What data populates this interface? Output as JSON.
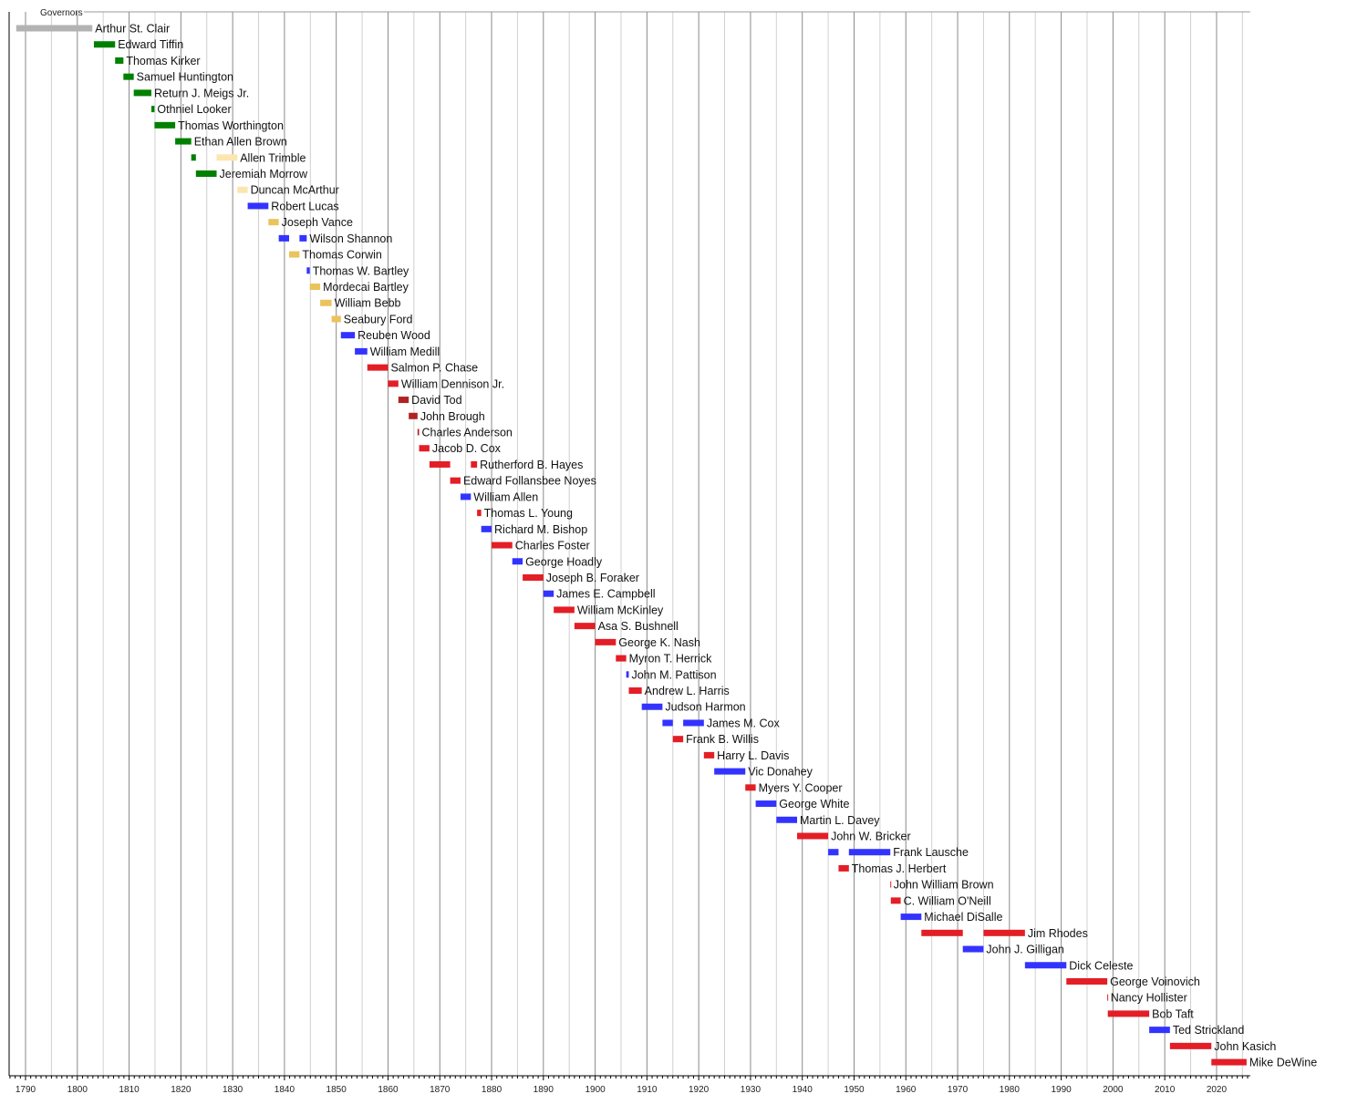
{
  "chart_data": {
    "type": "timeline",
    "title": "Governors",
    "xlim": [
      1787,
      2026.5
    ],
    "x_ticks": [
      1790,
      1800,
      1810,
      1820,
      1830,
      1840,
      1850,
      1860,
      1870,
      1880,
      1890,
      1900,
      1910,
      1920,
      1930,
      1940,
      1950,
      1960,
      1970,
      1980,
      1990,
      2000,
      2010,
      2020
    ],
    "grid": "major every 10 years, minor every 5 years, ticks every year",
    "colors": {
      "grey": "#b3b3b3",
      "green": "#008000",
      "pale": "#fde5b0",
      "gold": "#eac35c",
      "blue": "#3333ff",
      "red": "#e31e26",
      "darkred": "#b22222"
    },
    "rows": [
      {
        "name": "Arthur St. Clair",
        "terms": [
          [
            1788.2,
            1802.9,
            "grey"
          ]
        ]
      },
      {
        "name": "Edward Tiffin",
        "terms": [
          [
            1803.2,
            1807.3,
            "green"
          ]
        ]
      },
      {
        "name": "Thomas Kirker",
        "terms": [
          [
            1807.3,
            1808.9,
            "green"
          ]
        ]
      },
      {
        "name": "Samuel Huntington",
        "terms": [
          [
            1808.9,
            1810.9,
            "green"
          ]
        ]
      },
      {
        "name": "Return J. Meigs Jr.",
        "terms": [
          [
            1810.9,
            1814.3,
            "green"
          ]
        ]
      },
      {
        "name": "Othniel Looker",
        "terms": [
          [
            1814.3,
            1814.9,
            "green"
          ]
        ]
      },
      {
        "name": "Thomas Worthington",
        "terms": [
          [
            1814.9,
            1818.9,
            "green"
          ]
        ]
      },
      {
        "name": "Ethan Allen Brown",
        "terms": [
          [
            1818.9,
            1822.0,
            "green"
          ]
        ]
      },
      {
        "name": "Allen Trimble",
        "terms": [
          [
            1822.0,
            1822.9,
            "green"
          ],
          [
            1826.9,
            1830.9,
            "pale"
          ]
        ]
      },
      {
        "name": "Jeremiah Morrow",
        "terms": [
          [
            1822.9,
            1826.9,
            "green"
          ]
        ]
      },
      {
        "name": "Duncan McArthur",
        "terms": [
          [
            1830.9,
            1832.9,
            "pale"
          ]
        ]
      },
      {
        "name": "Robert Lucas",
        "terms": [
          [
            1832.9,
            1836.9,
            "blue"
          ]
        ]
      },
      {
        "name": "Joseph Vance",
        "terms": [
          [
            1836.9,
            1838.9,
            "gold"
          ]
        ]
      },
      {
        "name": "Wilson Shannon",
        "terms": [
          [
            1838.9,
            1840.9,
            "blue"
          ],
          [
            1842.9,
            1844.3,
            "blue"
          ]
        ]
      },
      {
        "name": "Thomas Corwin",
        "terms": [
          [
            1840.9,
            1842.9,
            "gold"
          ]
        ]
      },
      {
        "name": "Thomas W. Bartley",
        "terms": [
          [
            1844.3,
            1844.9,
            "blue"
          ]
        ]
      },
      {
        "name": "Mordecai Bartley",
        "terms": [
          [
            1844.9,
            1846.9,
            "gold"
          ]
        ]
      },
      {
        "name": "William Bebb",
        "terms": [
          [
            1846.9,
            1849.1,
            "gold"
          ]
        ]
      },
      {
        "name": "Seabury Ford",
        "terms": [
          [
            1849.1,
            1850.9,
            "gold"
          ]
        ]
      },
      {
        "name": "Reuben Wood",
        "terms": [
          [
            1850.9,
            1853.6,
            "blue"
          ]
        ]
      },
      {
        "name": "William Medill",
        "terms": [
          [
            1853.6,
            1856.0,
            "blue"
          ]
        ]
      },
      {
        "name": "Salmon P. Chase",
        "terms": [
          [
            1856.0,
            1860.0,
            "red"
          ]
        ]
      },
      {
        "name": "William Dennison Jr.",
        "terms": [
          [
            1860.0,
            1862.0,
            "red"
          ]
        ]
      },
      {
        "name": "David Tod",
        "terms": [
          [
            1862.0,
            1864.0,
            "darkred"
          ]
        ]
      },
      {
        "name": "John Brough",
        "terms": [
          [
            1864.0,
            1865.7,
            "darkred"
          ]
        ]
      },
      {
        "name": "Charles Anderson",
        "terms": [
          [
            1865.7,
            1866.0,
            "darkred"
          ]
        ]
      },
      {
        "name": "Jacob D. Cox",
        "terms": [
          [
            1866.0,
            1868.0,
            "red"
          ]
        ]
      },
      {
        "name": "Rutherford B. Hayes",
        "terms": [
          [
            1868.0,
            1872.0,
            "red"
          ],
          [
            1876.0,
            1877.2,
            "red"
          ]
        ]
      },
      {
        "name": "Edward Follansbee Noyes",
        "terms": [
          [
            1872.0,
            1874.0,
            "red"
          ]
        ]
      },
      {
        "name": "William Allen",
        "terms": [
          [
            1874.0,
            1876.0,
            "blue"
          ]
        ]
      },
      {
        "name": "Thomas L. Young",
        "terms": [
          [
            1877.2,
            1878.0,
            "red"
          ]
        ]
      },
      {
        "name": "Richard M. Bishop",
        "terms": [
          [
            1878.0,
            1880.0,
            "blue"
          ]
        ]
      },
      {
        "name": "Charles Foster",
        "terms": [
          [
            1880.0,
            1884.0,
            "red"
          ]
        ]
      },
      {
        "name": "George Hoadly",
        "terms": [
          [
            1884.0,
            1886.0,
            "blue"
          ]
        ]
      },
      {
        "name": "Joseph B. Foraker",
        "terms": [
          [
            1886.0,
            1890.0,
            "red"
          ]
        ]
      },
      {
        "name": "James E. Campbell",
        "terms": [
          [
            1890.0,
            1892.0,
            "blue"
          ]
        ]
      },
      {
        "name": "William McKinley",
        "terms": [
          [
            1892.0,
            1896.0,
            "red"
          ]
        ]
      },
      {
        "name": "Asa S. Bushnell",
        "terms": [
          [
            1896.0,
            1900.0,
            "red"
          ]
        ]
      },
      {
        "name": "George K. Nash",
        "terms": [
          [
            1900.0,
            1904.0,
            "red"
          ]
        ]
      },
      {
        "name": "Myron T. Herrick",
        "terms": [
          [
            1904.0,
            1906.0,
            "red"
          ]
        ]
      },
      {
        "name": "John M. Pattison",
        "terms": [
          [
            1906.0,
            1906.5,
            "blue"
          ]
        ]
      },
      {
        "name": "Andrew L. Harris",
        "terms": [
          [
            1906.5,
            1909.0,
            "red"
          ]
        ]
      },
      {
        "name": "Judson Harmon",
        "terms": [
          [
            1909.0,
            1913.0,
            "blue"
          ]
        ]
      },
      {
        "name": "James M. Cox",
        "terms": [
          [
            1913.0,
            1915.0,
            "blue"
          ],
          [
            1917.0,
            1921.0,
            "blue"
          ]
        ]
      },
      {
        "name": "Frank B. Willis",
        "terms": [
          [
            1915.0,
            1917.0,
            "red"
          ]
        ]
      },
      {
        "name": "Harry L. Davis",
        "terms": [
          [
            1921.0,
            1923.0,
            "red"
          ]
        ]
      },
      {
        "name": "Vic Donahey",
        "terms": [
          [
            1923.0,
            1929.0,
            "blue"
          ]
        ]
      },
      {
        "name": "Myers Y. Cooper",
        "terms": [
          [
            1929.0,
            1931.0,
            "red"
          ]
        ]
      },
      {
        "name": "George White",
        "terms": [
          [
            1931.0,
            1935.0,
            "blue"
          ]
        ]
      },
      {
        "name": "Martin L. Davey",
        "terms": [
          [
            1935.0,
            1939.0,
            "blue"
          ]
        ]
      },
      {
        "name": "John W. Bricker",
        "terms": [
          [
            1939.0,
            1945.0,
            "red"
          ]
        ]
      },
      {
        "name": "Frank Lausche",
        "terms": [
          [
            1945.0,
            1947.0,
            "blue"
          ],
          [
            1949.0,
            1957.0,
            "blue"
          ]
        ]
      },
      {
        "name": "Thomas J. Herbert",
        "terms": [
          [
            1947.0,
            1949.0,
            "red"
          ]
        ]
      },
      {
        "name": "John William Brown",
        "terms": [
          [
            1957.0,
            1957.1,
            "red"
          ]
        ]
      },
      {
        "name": "C. William O'Neill",
        "terms": [
          [
            1957.1,
            1959.0,
            "red"
          ]
        ]
      },
      {
        "name": "Michael DiSalle",
        "terms": [
          [
            1959.0,
            1963.0,
            "blue"
          ]
        ]
      },
      {
        "name": "Jim Rhodes",
        "terms": [
          [
            1963.0,
            1971.0,
            "red"
          ],
          [
            1975.0,
            1983.0,
            "red"
          ]
        ]
      },
      {
        "name": "John J. Gilligan",
        "terms": [
          [
            1971.0,
            1975.0,
            "blue"
          ]
        ]
      },
      {
        "name": "Dick Celeste",
        "terms": [
          [
            1983.0,
            1991.0,
            "blue"
          ]
        ]
      },
      {
        "name": "George Voinovich",
        "terms": [
          [
            1991.0,
            1998.9,
            "red"
          ]
        ]
      },
      {
        "name": "Nancy Hollister",
        "terms": [
          [
            1998.9,
            1999.0,
            "red"
          ]
        ]
      },
      {
        "name": "Bob Taft",
        "terms": [
          [
            1999.0,
            2007.0,
            "red"
          ]
        ]
      },
      {
        "name": "Ted Strickland",
        "terms": [
          [
            2007.0,
            2011.0,
            "blue"
          ]
        ]
      },
      {
        "name": "John Kasich",
        "terms": [
          [
            2011.0,
            2019.0,
            "red"
          ]
        ]
      },
      {
        "name": "Mike DeWine",
        "terms": [
          [
            2019.0,
            2025.8,
            "red"
          ]
        ]
      }
    ]
  }
}
